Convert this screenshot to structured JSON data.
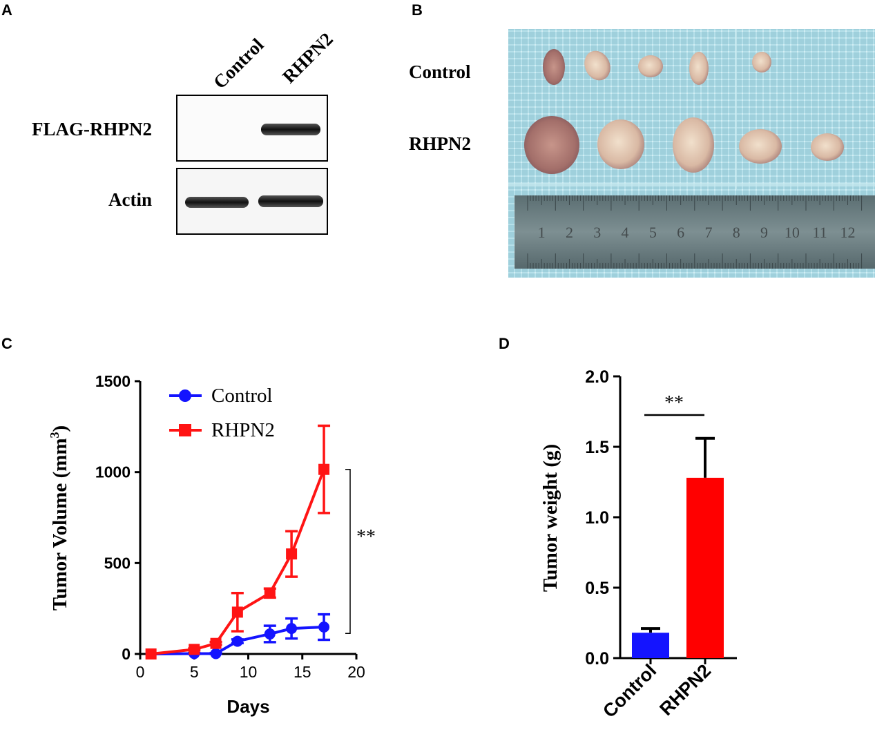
{
  "panels": {
    "a": {
      "letter": "A",
      "lanes": [
        "Control",
        "RHPN2"
      ],
      "rows": [
        "FLAG-RHPN2",
        "Actin"
      ]
    },
    "b": {
      "letter": "B",
      "row_labels": [
        "Control",
        "RHPN2"
      ],
      "ruler_numbers": [
        "1",
        "2",
        "3",
        "4",
        "5",
        "6",
        "7",
        "8",
        "9",
        "10",
        "11",
        "12"
      ]
    },
    "c": {
      "letter": "C"
    },
    "d": {
      "letter": "D"
    }
  },
  "chart_data": [
    {
      "type": "line",
      "panel": "C",
      "xlabel": "Days",
      "ylabel": "Tumor Volume (mm",
      "ylabel_sup": "3",
      "ylabel_end": ")",
      "xlim": [
        0,
        20
      ],
      "ylim": [
        0,
        1500
      ],
      "xticks": [
        0,
        5,
        10,
        15,
        20
      ],
      "yticks": [
        0,
        500,
        1000,
        1500
      ],
      "series": [
        {
          "name": "Control",
          "color": "#1414ff",
          "marker": "circle",
          "x": [
            1,
            5,
            7,
            9,
            12,
            14,
            17
          ],
          "y": [
            0,
            2,
            2,
            70,
            110,
            140,
            148
          ],
          "err": [
            0,
            3,
            3,
            10,
            45,
            55,
            70
          ]
        },
        {
          "name": "RHPN2",
          "color": "#ff1414",
          "marker": "square",
          "x": [
            1,
            5,
            7,
            9,
            12,
            14,
            17
          ],
          "y": [
            0,
            25,
            58,
            230,
            335,
            550,
            1015
          ],
          "err": [
            0,
            5,
            8,
            105,
            25,
            125,
            240
          ]
        }
      ],
      "annotation": "**",
      "legend_position": "top-left"
    },
    {
      "type": "bar",
      "panel": "D",
      "ylabel": "Tumor weight (g)",
      "ylim": [
        0,
        2.0
      ],
      "yticks": [
        "0.0",
        "0.5",
        "1.0",
        "1.5",
        "2.0"
      ],
      "categories": [
        "Control",
        "RHPN2"
      ],
      "values": [
        0.18,
        1.28
      ],
      "errors": [
        0.03,
        0.28
      ],
      "colors": [
        "#1414ff",
        "#ff0000"
      ],
      "annotation": "**"
    }
  ]
}
